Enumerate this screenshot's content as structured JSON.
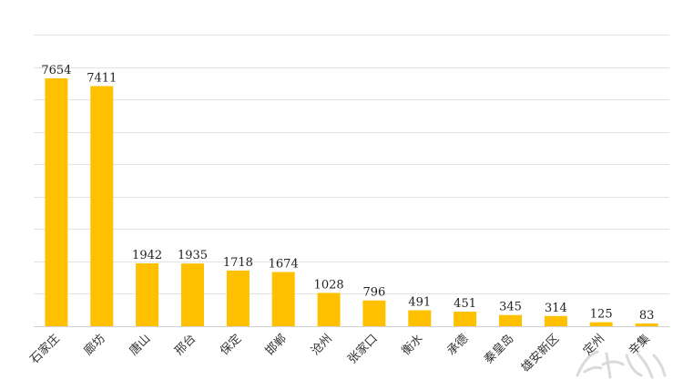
{
  "chart_data": {
    "type": "bar",
    "title": "",
    "xlabel": "",
    "ylabel": "",
    "ylim": [
      0,
      9000
    ],
    "grid": true,
    "legend": "none",
    "categories": [
      "石家庄",
      "廊坊",
      "唐山",
      "邢台",
      "保定",
      "邯郸",
      "沧州",
      "张家口",
      "衡水",
      "承德",
      "秦皇岛",
      "雄安新区",
      "定州",
      "辛集"
    ],
    "values": [
      7654,
      7411,
      1942,
      1935,
      1718,
      1674,
      1028,
      796,
      491,
      451,
      345,
      314,
      125,
      83
    ],
    "bar_color": "#ffc000"
  },
  "watermark": {
    "icon": "watermark-icon"
  }
}
